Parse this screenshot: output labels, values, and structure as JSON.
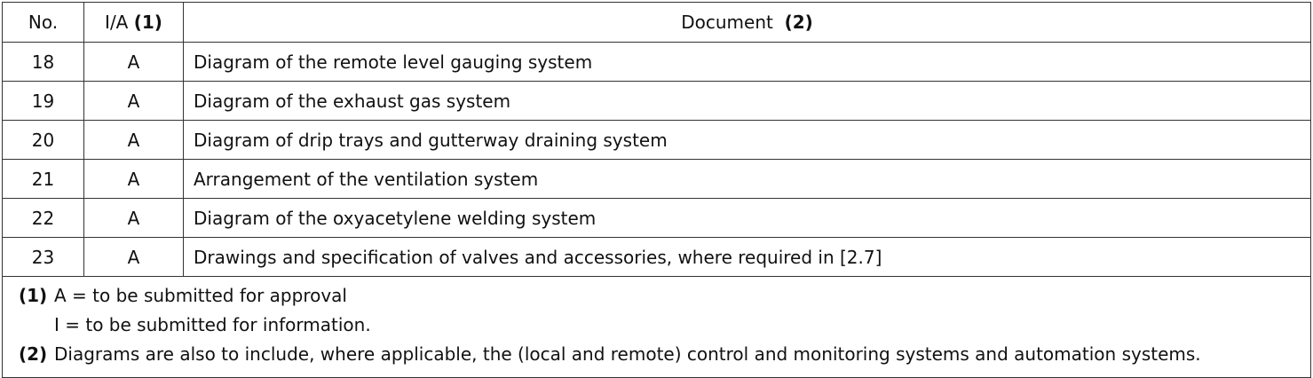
{
  "table": {
    "header": {
      "no": "No.",
      "ia": "I/A",
      "ia_ref": "(1)",
      "document": "Document",
      "document_ref": "(2)"
    },
    "rows": [
      {
        "no": "18",
        "ia": "A",
        "document": "Diagram of the remote level gauging system"
      },
      {
        "no": "19",
        "ia": "A",
        "document": "Diagram of the exhaust gas system"
      },
      {
        "no": "20",
        "ia": "A",
        "document": "Diagram of drip trays and gutterway draining system"
      },
      {
        "no": "21",
        "ia": "A",
        "document": "Arrangement of the ventilation system"
      },
      {
        "no": "22",
        "ia": "A",
        "document": "Diagram of the oxyacetylene welding system"
      },
      {
        "no": "23",
        "ia": "A",
        "document": "Drawings and specification of valves and accessories, where required in [2.7]"
      }
    ]
  },
  "notes": [
    {
      "ref": "(1)",
      "lines": [
        "A = to be submitted for approval",
        "I = to be submitted for information."
      ]
    },
    {
      "ref": "(2)",
      "lines": [
        "Diagrams are also to include, where applicable, the (local and remote) control and monitoring systems and automation systems."
      ]
    }
  ]
}
